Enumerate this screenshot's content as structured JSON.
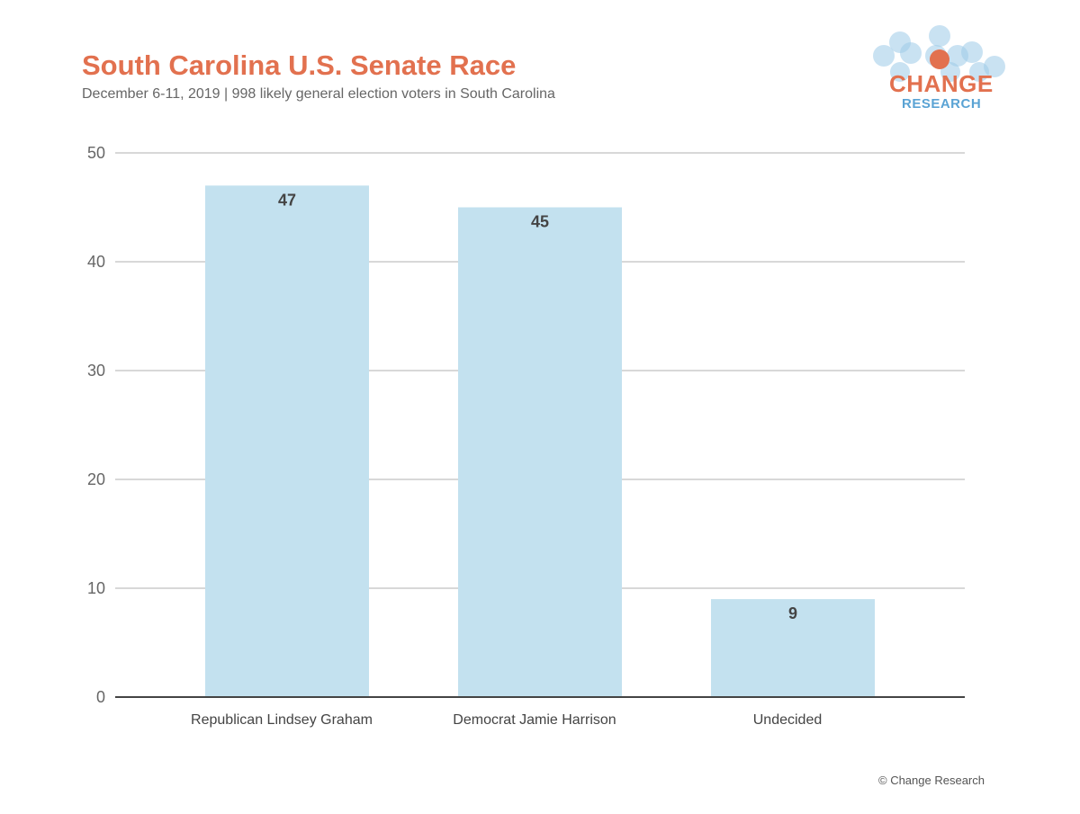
{
  "header": {
    "title": "South Carolina U.S. Senate Race",
    "subtitle": "December 6-11, 2019 | 998 likely general election voters in South Carolina"
  },
  "logo": {
    "line1": "CHANGE",
    "line2": "RESEARCH",
    "accent": "#e2714f",
    "secondary": "#5aa3d4"
  },
  "footer": {
    "credit": "© Change Research"
  },
  "colors": {
    "bar": "#c3e1ef",
    "grid": "#cccccc",
    "axis": "#444444"
  },
  "chart_data": {
    "type": "bar",
    "title": "South Carolina U.S. Senate Race",
    "xlabel": "",
    "ylabel": "",
    "categories": [
      "Republican Lindsey Graham",
      "Democrat Jamie Harrison",
      "Undecided"
    ],
    "values": [
      47,
      45,
      9
    ],
    "ylim": [
      0,
      50
    ],
    "yticks": [
      0,
      10,
      20,
      30,
      40,
      50
    ],
    "grid": true,
    "data_labels": true
  }
}
